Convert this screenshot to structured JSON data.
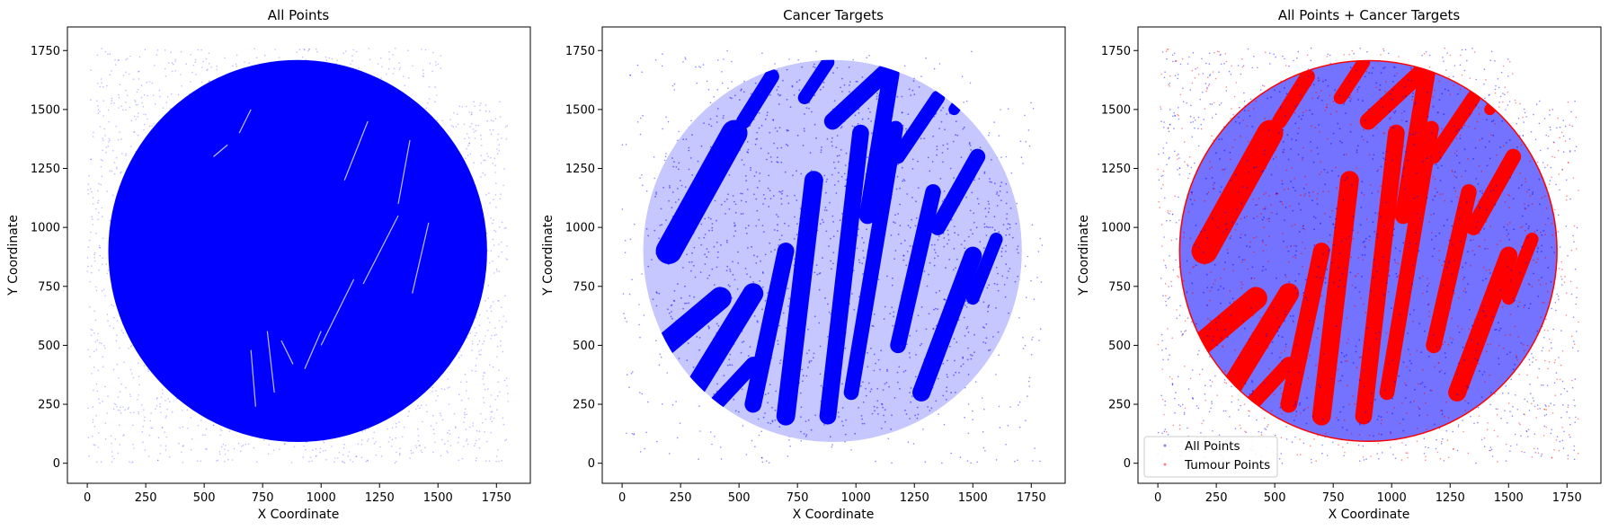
{
  "chart_data": [
    {
      "type": "scatter",
      "title": "All Points",
      "xlabel": "X Coordinate",
      "ylabel": "Y Coordinate",
      "xlim": [
        -85,
        1895
      ],
      "ylim": [
        -85,
        1850
      ],
      "xticks": [
        0,
        250,
        500,
        750,
        1000,
        1250,
        1500,
        1750
      ],
      "yticks": [
        0,
        250,
        500,
        750,
        1000,
        1250,
        1500,
        1750
      ],
      "grid": false,
      "series": [
        {
          "color": "#0000ff",
          "region": {
            "disk_center": [
              900,
              900
            ],
            "disk_radius": 810,
            "background_extent": [
              0,
              1800,
              0,
              1760
            ],
            "dense_fill": true
          }
        }
      ]
    },
    {
      "type": "scatter",
      "title": "Cancer Targets",
      "xlabel": "X Coordinate",
      "ylabel": "Y Coordinate",
      "xlim": [
        -85,
        1895
      ],
      "ylim": [
        -85,
        1850
      ],
      "xticks": [
        0,
        250,
        500,
        750,
        1000,
        1250,
        1500,
        1750
      ],
      "yticks": [
        0,
        250,
        500,
        750,
        1000,
        1250,
        1500,
        1750
      ],
      "grid": false,
      "series": [
        {
          "color": "#0000ff",
          "region": {
            "disk_center": [
              900,
              900
            ],
            "disk_radius": 810,
            "background_extent": [
              0,
              1800,
              0,
              1760
            ],
            "dense_fill": false
          }
        }
      ]
    },
    {
      "type": "scatter",
      "title": "All Points + Cancer Targets",
      "xlabel": "X Coordinate",
      "ylabel": "Y Coordinate",
      "xlim": [
        -85,
        1895
      ],
      "ylim": [
        -85,
        1850
      ],
      "xticks": [
        0,
        250,
        500,
        750,
        1000,
        1250,
        1500,
        1750
      ],
      "yticks": [
        0,
        250,
        500,
        750,
        1000,
        1250,
        1500,
        1750
      ],
      "grid": false,
      "legend_position": "lower-left",
      "series": [
        {
          "name": "All Points",
          "color": "#0000ff"
        },
        {
          "name": "Tumour Points",
          "color": "#ff0000"
        }
      ]
    }
  ]
}
